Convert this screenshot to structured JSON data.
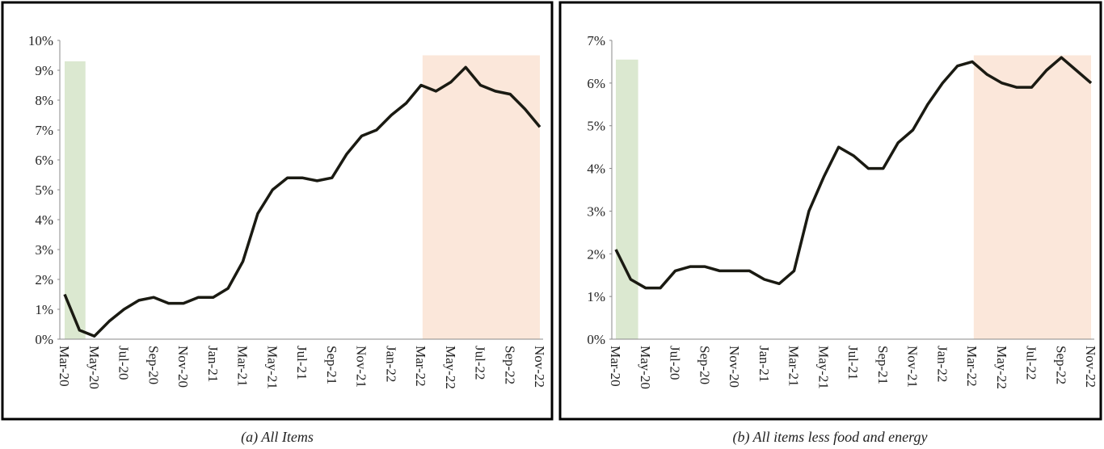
{
  "chart_data": [
    {
      "type": "line",
      "caption": "(a) All Items",
      "categories": [
        "Mar-20",
        null,
        "May-20",
        null,
        "Jul-20",
        null,
        "Sep-20",
        null,
        "Nov-20",
        null,
        "Jan-21",
        null,
        "Mar-21",
        null,
        "May-21",
        null,
        "Jul-21",
        null,
        "Sep-21",
        null,
        "Nov-21",
        null,
        "Jan-22",
        null,
        "Mar-22",
        null,
        "May-22",
        null,
        "Jul-22",
        null,
        "Sep-22",
        null,
        "Nov-22"
      ],
      "series": [
        {
          "color": "#1a1a12",
          "values": [
            1.5,
            0.3,
            0.1,
            0.6,
            1.0,
            1.3,
            1.4,
            1.2,
            1.2,
            1.4,
            1.4,
            1.7,
            2.6,
            4.2,
            5.0,
            5.4,
            5.4,
            5.3,
            5.4,
            6.2,
            6.8,
            7.0,
            7.5,
            7.9,
            8.5,
            8.3,
            8.6,
            9.1,
            8.5,
            8.3,
            8.2,
            7.7,
            7.1
          ]
        }
      ],
      "ylim": [
        0,
        10
      ],
      "yticks": [
        {
          "value": 0,
          "label": "0%"
        },
        {
          "value": 1,
          "label": "1%"
        },
        {
          "value": 2,
          "label": "2%"
        },
        {
          "value": 3,
          "label": "3%"
        },
        {
          "value": 4,
          "label": "4%"
        },
        {
          "value": 5,
          "label": "5%"
        },
        {
          "value": 6,
          "label": "6%"
        },
        {
          "value": 7,
          "label": "7%"
        },
        {
          "value": 8,
          "label": "8%"
        },
        {
          "value": 9,
          "label": "9%"
        },
        {
          "value": 10,
          "label": "10%"
        }
      ],
      "shaded": [
        {
          "x": [
            0,
            1.4
          ],
          "top": 9.3,
          "color": "#dbe8d0"
        },
        {
          "x": [
            24.1,
            32
          ],
          "top": 9.5,
          "color": "#fbe7da"
        }
      ]
    },
    {
      "type": "line",
      "caption": "(b) All items less food and energy",
      "categories": [
        "Mar-20",
        null,
        "May-20",
        null,
        "Jul-20",
        null,
        "Sep-20",
        null,
        "Nov-20",
        null,
        "Jan-21",
        null,
        "Mar-21",
        null,
        "May-21",
        null,
        "Jul-21",
        null,
        "Sep-21",
        null,
        "Nov-21",
        null,
        "Jan-22",
        null,
        "Mar-22",
        null,
        "May-22",
        null,
        "Jul-22",
        null,
        "Sep-22",
        null,
        "Nov-22"
      ],
      "series": [
        {
          "color": "#1a1a12",
          "values": [
            2.1,
            1.4,
            1.2,
            1.2,
            1.6,
            1.7,
            1.7,
            1.6,
            1.6,
            1.6,
            1.4,
            1.3,
            1.6,
            3.0,
            3.8,
            4.5,
            4.3,
            4.0,
            4.0,
            4.6,
            4.9,
            5.5,
            6.0,
            6.4,
            6.5,
            6.2,
            6.0,
            5.9,
            5.9,
            6.3,
            6.6,
            6.3,
            6.0
          ]
        }
      ],
      "ylim": [
        0,
        7
      ],
      "yticks": [
        {
          "value": 0,
          "label": "0%"
        },
        {
          "value": 1,
          "label": "1%"
        },
        {
          "value": 2,
          "label": "2%"
        },
        {
          "value": 3,
          "label": "3%"
        },
        {
          "value": 4,
          "label": "4%"
        },
        {
          "value": 5,
          "label": "5%"
        },
        {
          "value": 6,
          "label": "6%"
        },
        {
          "value": 7,
          "label": "7%"
        }
      ],
      "shaded": [
        {
          "x": [
            0,
            1.5
          ],
          "top": 6.55,
          "color": "#dbe8d0"
        },
        {
          "x": [
            24.1,
            32
          ],
          "top": 6.65,
          "color": "#fbe7da"
        }
      ]
    }
  ]
}
